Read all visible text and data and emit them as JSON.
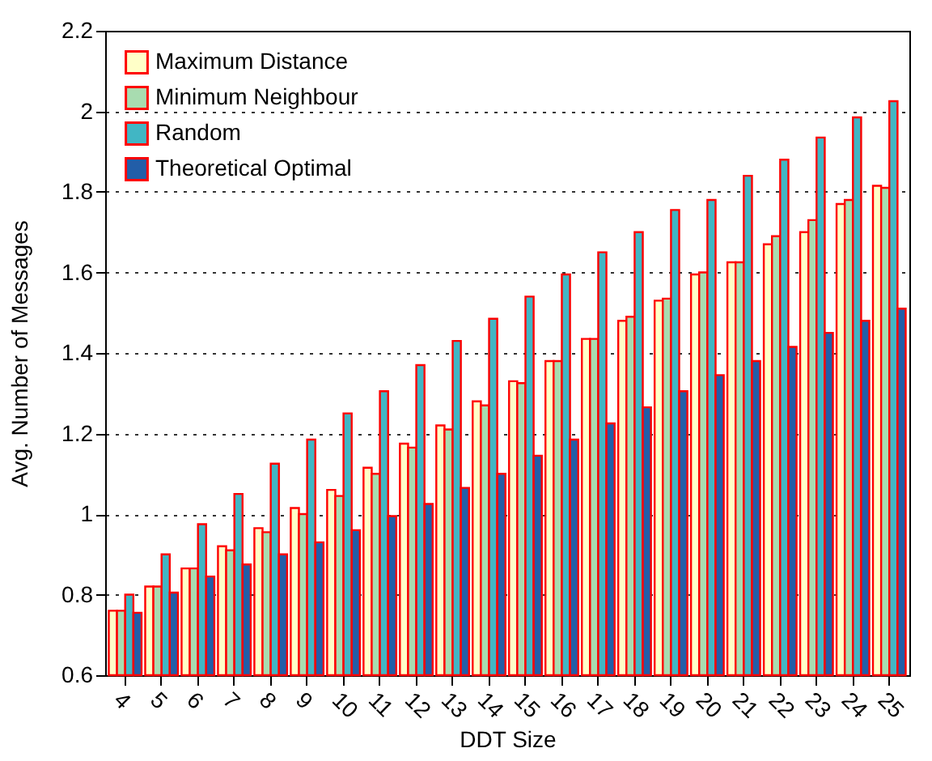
{
  "chart_data": {
    "type": "bar",
    "xlabel": "DDT Size",
    "ylabel": "Avg. Number of Messages",
    "categories": [
      "4",
      "5",
      "6",
      "7",
      "8",
      "9",
      "10",
      "11",
      "12",
      "13",
      "14",
      "15",
      "16",
      "17",
      "18",
      "19",
      "20",
      "21",
      "22",
      "23",
      "24",
      "25"
    ],
    "series": [
      {
        "name": "Maximum Distance",
        "color": "#ffffc8",
        "values": [
          0.76,
          0.82,
          0.865,
          0.92,
          0.965,
          1.015,
          1.06,
          1.115,
          1.175,
          1.22,
          1.28,
          1.33,
          1.38,
          1.435,
          1.48,
          1.53,
          1.595,
          1.625,
          1.67,
          1.7,
          1.77,
          1.815
        ]
      },
      {
        "name": "Minimum Neighbour",
        "color": "#a8dcb0",
        "values": [
          0.76,
          0.82,
          0.865,
          0.91,
          0.955,
          1.0,
          1.045,
          1.1,
          1.165,
          1.21,
          1.27,
          1.325,
          1.38,
          1.435,
          1.49,
          1.535,
          1.6,
          1.625,
          1.69,
          1.73,
          1.78,
          1.81
        ]
      },
      {
        "name": "Random",
        "color": "#41b6c4",
        "values": [
          0.8,
          0.9,
          0.975,
          1.05,
          1.125,
          1.185,
          1.25,
          1.305,
          1.37,
          1.43,
          1.485,
          1.54,
          1.595,
          1.65,
          1.7,
          1.755,
          1.78,
          1.84,
          1.88,
          1.935,
          1.985,
          2.025
        ]
      },
      {
        "name": "Theoretical Optimal",
        "color": "#225ea8",
        "values": [
          0.755,
          0.805,
          0.845,
          0.875,
          0.9,
          0.93,
          0.96,
          0.995,
          1.025,
          1.065,
          1.1,
          1.145,
          1.185,
          1.225,
          1.265,
          1.305,
          1.345,
          1.38,
          1.415,
          1.45,
          1.48,
          1.51
        ]
      }
    ],
    "ylim": [
      0.6,
      2.2
    ],
    "yticks": [
      0.6,
      0.8,
      1,
      1.2,
      1.4,
      1.6,
      1.8,
      2,
      2.2
    ],
    "grid": "y",
    "legend": "top left"
  }
}
